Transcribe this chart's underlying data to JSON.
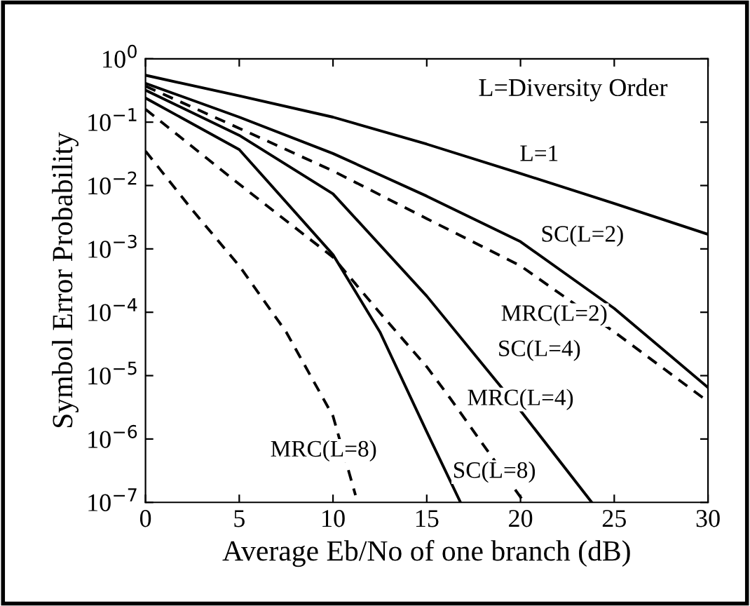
{
  "chart_data": {
    "type": "line",
    "xlabel": "Average Eb/No of one branch (dB)",
    "ylabel": "Symbol Error Probability",
    "log": "y",
    "grid": false,
    "xlim": [
      0,
      30
    ],
    "xticks": [
      0,
      5,
      10,
      15,
      20,
      25,
      30
    ],
    "ylim": [
      1e-07,
      1
    ],
    "yticks": [
      {
        "value": 1e-07,
        "label": "10$^{−7}$"
      },
      {
        "value": 1e-06,
        "label": "10$^{−6}$"
      },
      {
        "value": 1e-05,
        "label": "10$^{−5}$"
      },
      {
        "value": 0.0001,
        "label": "10$^{−4}$"
      },
      {
        "value": 0.001,
        "label": "10$^{−3}$"
      },
      {
        "value": 0.01,
        "label": "10$^{−2}$"
      },
      {
        "value": 0.1,
        "label": "10$^{−1}$"
      },
      {
        "value": 1,
        "label": "10$^{0}$"
      }
    ],
    "series": [
      {
        "name": "L=1",
        "color": "#000000",
        "line_style": "solid",
        "x": [
          0,
          5,
          10,
          15,
          20,
          25,
          30
        ],
        "values": [
          0.55,
          0.26,
          0.12,
          0.045,
          0.0155,
          0.0052,
          0.0017
        ]
      },
      {
        "name": "SC(L=2)",
        "color": "#000000",
        "line_style": "solid",
        "x": [
          0,
          5,
          10,
          15,
          20,
          25,
          30
        ],
        "values": [
          0.41,
          0.12,
          0.032,
          0.0068,
          0.0013,
          0.000115,
          6.5e-06
        ]
      },
      {
        "name": "MRC(L=2)",
        "color": "#000000",
        "line_style": "dashed",
        "x": [
          0,
          5,
          10,
          15,
          20,
          25,
          30
        ],
        "values": [
          0.37,
          0.08,
          0.017,
          0.003,
          0.00054,
          4.9e-05,
          3.9e-06
        ]
      },
      {
        "name": "SC(L=4)",
        "color": "#000000",
        "line_style": "solid",
        "x": [
          0,
          5,
          10,
          15,
          20,
          23.8
        ],
        "values": [
          0.32,
          0.062,
          0.0074,
          0.00018,
          2.8e-06,
          1e-07
        ]
      },
      {
        "name": "MRC(L=4)",
        "color": "#000000",
        "line_style": "dashed",
        "x": [
          0,
          5,
          10,
          12.5,
          15,
          16.2,
          20.1
        ],
        "values": [
          0.16,
          0.0105,
          0.00074,
          9.8e-05,
          1.38e-05,
          4.6e-06,
          1.1e-07
        ]
      },
      {
        "name": "SC(L=8)",
        "color": "#000000",
        "line_style": "solid",
        "x": [
          0,
          5,
          10,
          12.5,
          15,
          16.8
        ],
        "values": [
          0.24,
          0.037,
          0.00081,
          4.9e-05,
          1.3e-06,
          1e-07
        ]
      },
      {
        "name": "MRC(L=8)",
        "color": "#000000",
        "line_style": "dashed",
        "x": [
          0,
          2.5,
          5,
          7.5,
          10,
          11.2
        ],
        "values": [
          0.035,
          0.0041,
          0.00054,
          4.9e-05,
          2.3e-06,
          1.3e-07
        ]
      }
    ],
    "annotations": [
      "L=Diversity Order"
    ]
  }
}
